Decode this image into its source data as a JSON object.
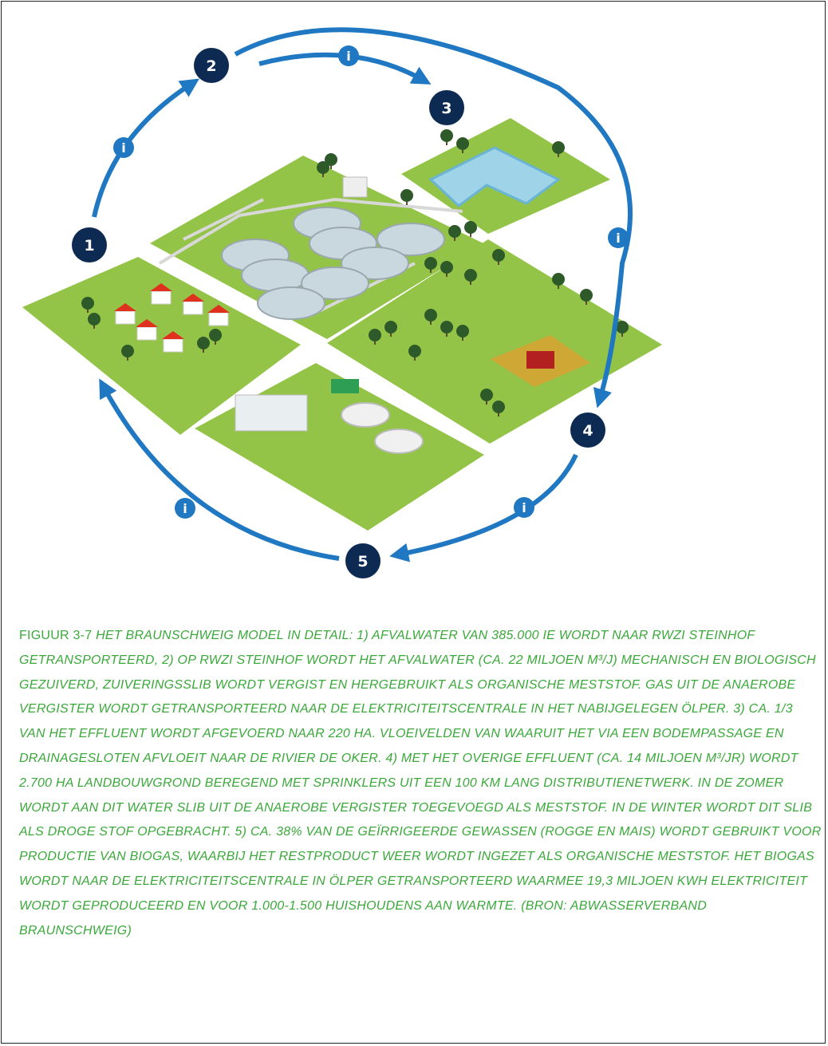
{
  "figure": {
    "steps": [
      "1",
      "2",
      "3",
      "4",
      "5"
    ],
    "info_icon": "i",
    "caption": {
      "label": "FIGUUR 3-7",
      "text": "HET BRAUNSCHWEIG MODEL IN DETAIL: 1) AFVALWATER VAN 385.000 IE WORDT NAAR RWZI STEINHOF GETRANSPORTEERD, 2) OP RWZI STEINHOF WORDT HET AFVALWATER (CA. 22 MILJOEN M³/J) MECHANISCH EN BIOLOGISCH GEZUIVERD, ZUIVERINGSSLIB WORDT VERGIST EN HERGEBRUIKT ALS ORGANISCHE MESTSTOF. GAS UIT DE ANAEROBE VERGISTER WORDT GETRANSPORTEERD NAAR DE ELEKTRICITEITSCENTRALE IN HET NABIJGELEGEN ÖLPER. 3) CA. 1/3 VAN HET EFFLUENT WORDT AFGEVOERD NAAR 220 HA. VLOEIVELDEN VAN WAARUIT HET VIA EEN BODEMPASSAGE EN DRAINAGESLOTEN AFVLOEIT NAAR DE RIVIER DE OKER. 4) MET HET OVERIGE EFFLUENT (CA. 14 MILJOEN M³/JR) WORDT 2.700 HA LANDBOUWGROND BEREGEND MET SPRINKLERS UIT EEN 100 KM LANG DISTRIBUTIENETWERK. IN DE ZOMER WORDT AAN DIT WATER SLIB UIT DE ANAEROBE VERGISTER TOEGEVOEGD ALS MESTSTOF. IN DE WINTER WORDT DIT SLIB ALS DROGE STOF OPGEBRACHT. 5) CA. 38% VAN DE GEÏRRIGEERDE GEWASSEN (ROGGE EN MAIS) WORDT GEBRUIKT VOOR PRODUCTIE VAN BIOGAS, WAARBIJ HET RESTPRODUCT WEER WORDT INGEZET ALS ORGANISCHE MESTSTOF. HET BIOGAS WORDT NAAR DE ELEKTRICITEITSCENTRALE IN ÖLPER GETRANSPORTEERD WAARMEE 19,3 MILJOEN KWH ELEKTRICITEIT WORDT GEPRODUCEERD EN VOOR 1.000-1.500 HUISHOUDENS AAN WARMTE. (BRON: ABWASSERVERBAND BRAUNSCHWEIG)"
    }
  }
}
